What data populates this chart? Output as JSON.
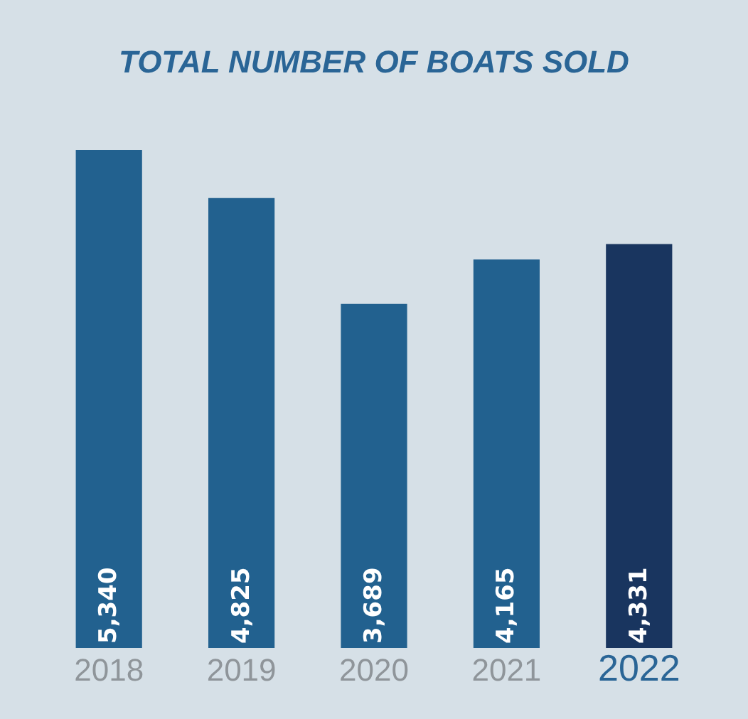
{
  "chart_data": {
    "type": "bar",
    "title": "TOTAL NUMBER OF BOATS SOLD",
    "categories": [
      "2018",
      "2019",
      "2020",
      "2021",
      "2022"
    ],
    "values": [
      5340,
      4825,
      3689,
      4165,
      4331
    ],
    "colors": [
      "#22618f",
      "#22618f",
      "#22618f",
      "#22618f",
      "#19355f"
    ],
    "value_labels": [
      "5,340",
      "4,825",
      "3,689",
      "4,165",
      "4,331"
    ],
    "grid": false,
    "legend": false,
    "tick_labels": "x"
  }
}
